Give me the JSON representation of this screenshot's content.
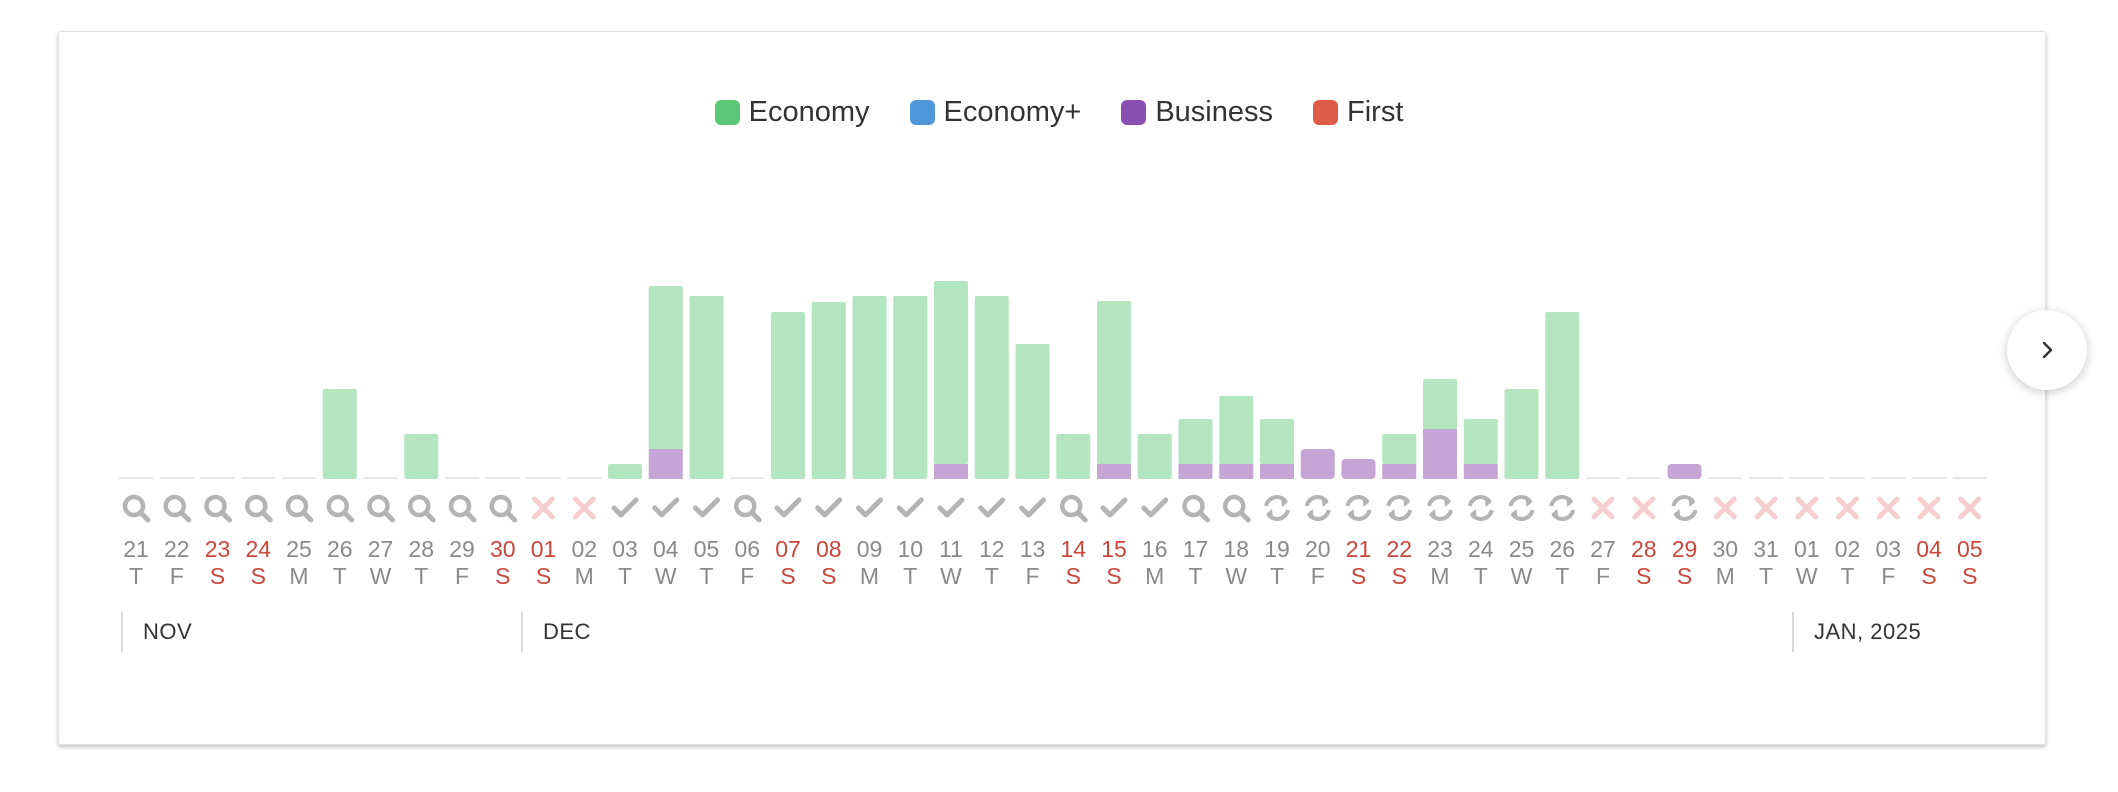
{
  "legend": [
    {
      "label": "Economy",
      "color": "#5cc777"
    },
    {
      "label": "Economy+",
      "color": "#4f97db"
    },
    {
      "label": "Business",
      "color": "#8a4fb3"
    },
    {
      "label": "First",
      "color": "#dd5c48"
    }
  ],
  "months": [
    {
      "label": "NOV"
    },
    {
      "label": "DEC"
    },
    {
      "label": "JAN, 2025"
    }
  ],
  "colors": {
    "economy_bar": "#b3e6c0",
    "business_bar": "#c4a5d6",
    "baseline": "#e6e6e6",
    "weekday_text": "#8a8a8a",
    "weekend_text": "#c9473b",
    "icon_gray": "#b4b4b4",
    "icon_x": "#f5cfcf"
  },
  "chart_data": {
    "type": "bar",
    "stacked": true,
    "categories": [
      "21",
      "22",
      "23",
      "24",
      "25",
      "26",
      "27",
      "28",
      "29",
      "30",
      "01",
      "02",
      "03",
      "04",
      "05",
      "06",
      "07",
      "08",
      "09",
      "10",
      "11",
      "12",
      "13",
      "14",
      "15",
      "16",
      "17",
      "18",
      "19",
      "20",
      "21",
      "22",
      "23",
      "24",
      "25",
      "26",
      "27",
      "28",
      "29",
      "30",
      "31",
      "01",
      "02",
      "03",
      "04",
      "05"
    ],
    "weekday_labels": [
      "T",
      "F",
      "S",
      "S",
      "M",
      "T",
      "W",
      "T",
      "F",
      "S",
      "S",
      "M",
      "T",
      "W",
      "T",
      "F",
      "S",
      "S",
      "M",
      "T",
      "W",
      "T",
      "F",
      "S",
      "S",
      "M",
      "T",
      "W",
      "T",
      "F",
      "S",
      "S",
      "M",
      "T",
      "W",
      "T",
      "F",
      "S",
      "S",
      "M",
      "T",
      "W",
      "T",
      "F",
      "S",
      "S"
    ],
    "weekend": [
      false,
      false,
      true,
      true,
      false,
      false,
      false,
      false,
      false,
      true,
      true,
      false,
      false,
      false,
      false,
      false,
      true,
      true,
      false,
      false,
      false,
      false,
      false,
      true,
      true,
      false,
      false,
      false,
      false,
      false,
      true,
      true,
      false,
      false,
      false,
      false,
      false,
      true,
      true,
      false,
      false,
      false,
      false,
      false,
      true,
      true
    ],
    "status_icons": [
      "search",
      "search",
      "search",
      "search",
      "search",
      "search",
      "search",
      "search",
      "search",
      "search",
      "x",
      "x",
      "check",
      "check",
      "check",
      "search",
      "check",
      "check",
      "check",
      "check",
      "check",
      "check",
      "check",
      "search",
      "check",
      "check",
      "search",
      "search",
      "refresh",
      "refresh",
      "refresh",
      "refresh",
      "refresh",
      "refresh",
      "refresh",
      "refresh",
      "x",
      "x",
      "refresh",
      "x",
      "x",
      "x",
      "x",
      "x",
      "x",
      "x"
    ],
    "series": [
      {
        "name": "Economy",
        "values": [
          0,
          0,
          0,
          0,
          0,
          90,
          0,
          45,
          0,
          0,
          0,
          0,
          15,
          163,
          183,
          0,
          167,
          177,
          183,
          183,
          183,
          183,
          135,
          45,
          163,
          45,
          45,
          68,
          45,
          0,
          0,
          30,
          50,
          45,
          90,
          167,
          0,
          0,
          0,
          0,
          0,
          0,
          0,
          0,
          0,
          0
        ]
      },
      {
        "name": "Business",
        "values": [
          0,
          0,
          0,
          0,
          0,
          0,
          0,
          0,
          0,
          0,
          0,
          0,
          0,
          30,
          0,
          0,
          0,
          0,
          0,
          0,
          15,
          0,
          0,
          0,
          15,
          0,
          15,
          15,
          15,
          30,
          20,
          15,
          50,
          15,
          0,
          0,
          0,
          0,
          15,
          0,
          0,
          0,
          0,
          0,
          0,
          0
        ]
      }
    ],
    "ylim": [
      0,
      200
    ]
  }
}
